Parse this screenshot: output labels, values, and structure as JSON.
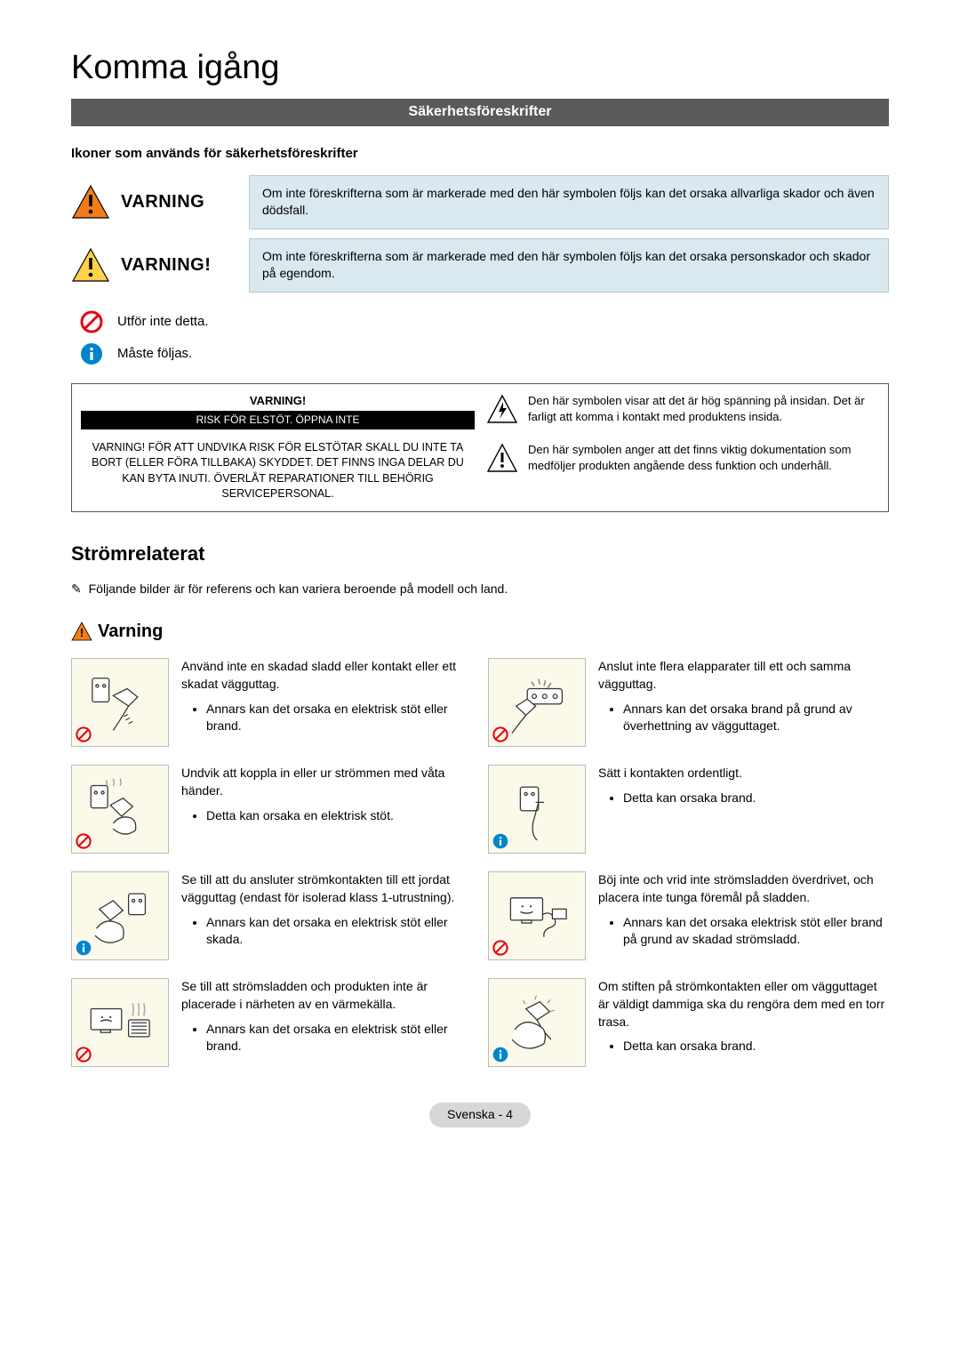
{
  "title": "Komma igång",
  "section_bar": "Säkerhetsföreskrifter",
  "icons_heading": "Ikoner som används för säkerhetsföreskrifter",
  "colors": {
    "orange": "#f07d1a",
    "yellow": "#ffd24a",
    "red_circle": "#e30613",
    "blue_circle": "#0085cc",
    "blue_box_bg": "#d9e9ef",
    "blue_box_border": "#b9c9cf",
    "section_bar_bg": "#5a5a5a",
    "illus_bg": "#fbf9e9",
    "pill_bg": "#d7d7d7"
  },
  "varning_rows": [
    {
      "label": "VARNING",
      "triangle_fill": "#f07d1a",
      "desc": "Om inte föreskrifterna som är markerade med den här symbolen följs kan det orsaka allvarliga skador och även dödsfall."
    },
    {
      "label": "VARNING!",
      "triangle_fill": "#ffd24a",
      "desc": "Om inte föreskrifterna som är markerade med den här symbolen följs kan det orsaka personskador och skador på egendom."
    }
  ],
  "small_rows": [
    {
      "type": "prohibit",
      "text": "Utför inte detta."
    },
    {
      "type": "info",
      "text": "Måste följas."
    }
  ],
  "warning_box": {
    "title": "VARNING!",
    "black_bar": "RISK FÖR ELSTÖT. ÖPPNA INTE",
    "body": "VARNING! FÖR ATT UNDVIKA RISK FÖR ELSTÖTAR SKALL DU INTE TA BORT (ELLER FÖRA TILLBAKA) SKYDDET. DET FINNS INGA DELAR DU KAN BYTA INUTI. ÖVERLÅT REPARATIONER TILL BEHÖRIG SERVICEPERSONAL.",
    "right": [
      {
        "icon": "bolt",
        "text": "Den här symbolen visar att det är hög spänning på insidan. Det är farligt att komma i kontakt med produktens insida."
      },
      {
        "icon": "exclaim",
        "text": "Den här symbolen anger att det finns viktig dokumentation som medföljer produkten angående dess funktion och underhåll."
      }
    ]
  },
  "power_title": "Strömrelaterat",
  "note": "Följande bilder är för referens och kan variera beroende på modell och land.",
  "warning_heading": "Varning",
  "items": [
    {
      "badge": "prohibit",
      "illus": "plug-damaged",
      "head": "Använd inte en skadad sladd eller kontakt eller ett skadat vägguttag.",
      "bullet": "Annars kan det orsaka en elektrisk stöt eller brand."
    },
    {
      "badge": "prohibit",
      "illus": "multi-plug",
      "head": "Anslut inte flera elapparater till ett och samma vägguttag.",
      "bullet": "Annars kan det orsaka brand på grund av överhettning av vägguttaget."
    },
    {
      "badge": "prohibit",
      "illus": "wet-hands",
      "head": "Undvik att koppla in eller ur strömmen med våta händer.",
      "bullet": "Detta kan orsaka en elektrisk stöt."
    },
    {
      "badge": "info",
      "illus": "plug-firm",
      "head": "Sätt i kontakten ordentligt.",
      "bullet": "Detta kan orsaka brand."
    },
    {
      "badge": "info",
      "illus": "grounded",
      "head": "Se till att du ansluter strömkontakten till ett jordat vägguttag (endast för isolerad klass 1-utrustning).",
      "bullet": "Annars kan det orsaka en elektrisk stöt eller skada."
    },
    {
      "badge": "prohibit",
      "illus": "tv-bend",
      "head": "Böj inte och vrid inte strömsladden överdrivet, och placera inte tunga föremål på sladden.",
      "bullet": "Annars kan det orsaka elektrisk stöt eller brand på grund av skadad strömsladd."
    },
    {
      "badge": "prohibit",
      "illus": "tv-heat",
      "head": "Se till att strömsladden och produkten inte är placerade i närheten av en värmekälla.",
      "bullet": "Annars kan det orsaka en elektrisk stöt eller brand."
    },
    {
      "badge": "info",
      "illus": "clean-plug",
      "head": "Om stiften på strömkontakten eller om vägguttaget är väldigt dammiga ska du rengöra dem med en torr trasa.",
      "bullet": "Detta kan orsaka brand."
    }
  ],
  "footer": {
    "lang": "Svenska",
    "page": "4"
  }
}
